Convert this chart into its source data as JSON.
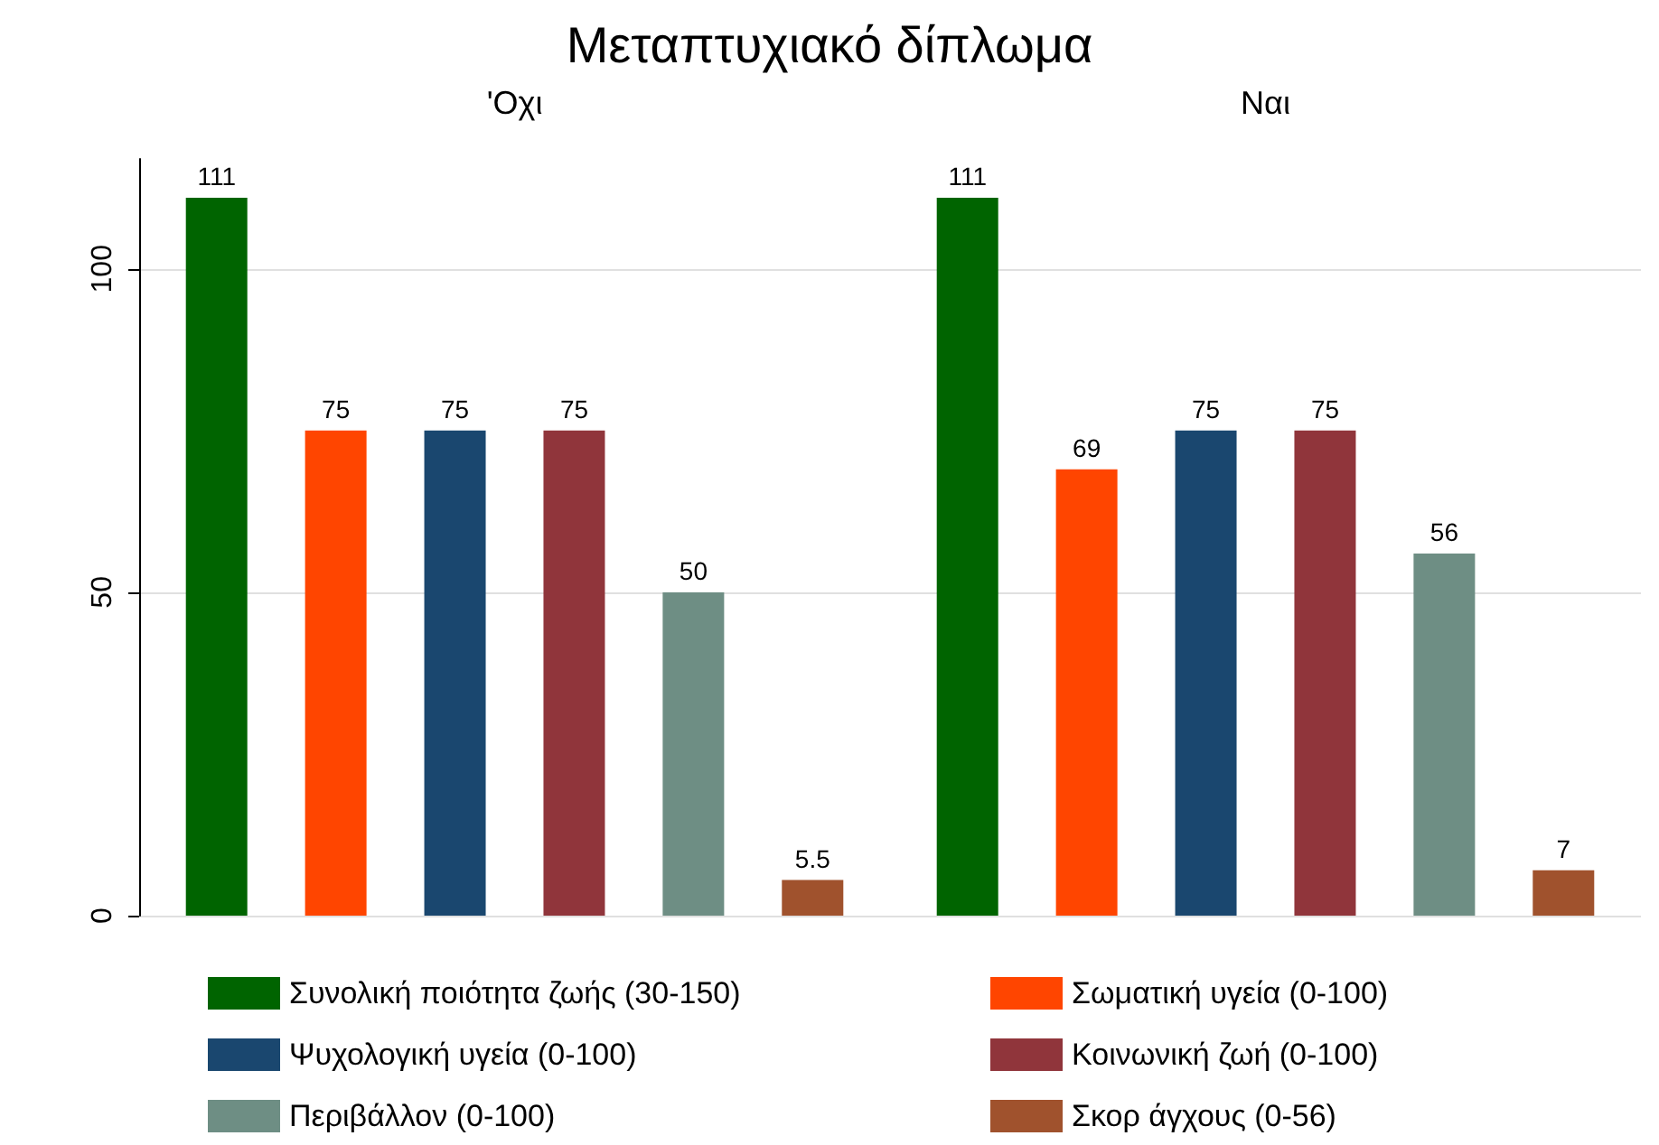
{
  "chart_data": {
    "type": "bar",
    "title": "Μεταπτυχιακό δίπλωμα",
    "categories": [
      "'Οχι",
      "Ναι"
    ],
    "series": [
      {
        "name": "Συνολική ποιότητα ζωής (30-150)",
        "color": "#006400",
        "values": [
          111,
          111
        ]
      },
      {
        "name": "Σωματική υγεία (0-100)",
        "color": "#ff4500",
        "values": [
          75,
          69
        ]
      },
      {
        "name": "Ψυχολογική υγεία (0-100)",
        "color": "#1a476f",
        "values": [
          75,
          75
        ]
      },
      {
        "name": "Κοινωνική ζωή (0-100)",
        "color": "#90353b",
        "values": [
          75,
          75
        ]
      },
      {
        "name": "Περιβάλλον (0-100)",
        "color": "#6e8e84",
        "values": [
          50,
          56
        ]
      },
      {
        "name": "Σκορ άγχους (0-56)",
        "color": "#a0522d",
        "values": [
          5.5,
          7
        ]
      }
    ],
    "ylim": [
      0,
      117
    ],
    "yticks": [
      0,
      50,
      100
    ],
    "grid": "y",
    "legend": "bottom",
    "data_labels": true
  }
}
